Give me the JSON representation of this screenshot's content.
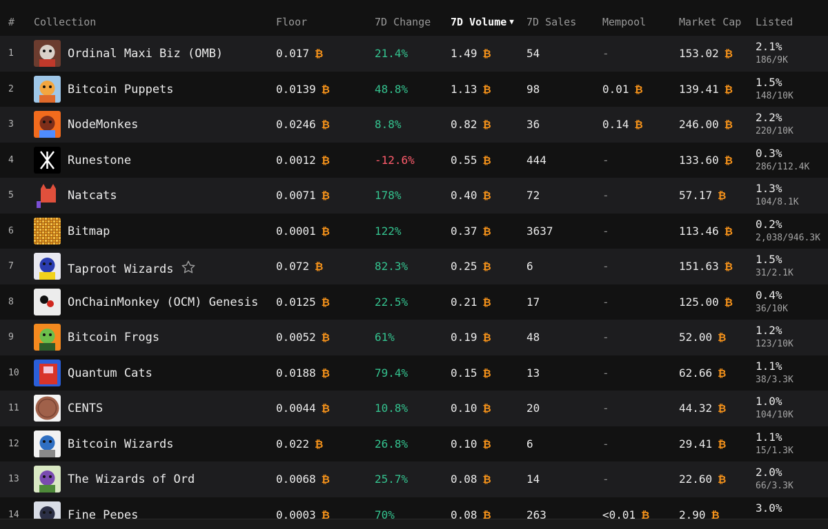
{
  "table": {
    "headers": {
      "rank": "#",
      "collection": "Collection",
      "floor": "Floor",
      "change": "7D Change",
      "volume": "7D Volume",
      "sales": "7D Sales",
      "mempool": "Mempool",
      "mcap": "Market Cap",
      "listed": "Listed"
    },
    "sort_indicator": "▼",
    "currency_symbol": "₿",
    "rows": [
      {
        "rank": "1",
        "name": "Ordinal Maxi Biz (OMB)",
        "floor": "0.017",
        "change": "21.4%",
        "dir": "pos",
        "volume": "1.49",
        "sales": "54",
        "mempool": "-",
        "mcap": "153.02",
        "listed_pct": "2.1%",
        "listed_cnt": "186/9K",
        "thumb": "omb-thumbnail",
        "colors": [
          "#6b3c2f",
          "#d9d1c9",
          "#c0392b"
        ]
      },
      {
        "rank": "2",
        "name": "Bitcoin Puppets",
        "floor": "0.0139",
        "change": "48.8%",
        "dir": "pos",
        "volume": "1.13",
        "sales": "98",
        "mempool": "0.01",
        "mcap": "139.41",
        "listed_pct": "1.5%",
        "listed_cnt": "148/10K",
        "thumb": "puppet-thumbnail",
        "colors": [
          "#9fc7e8",
          "#f3a640",
          "#e06a2b"
        ]
      },
      {
        "rank": "3",
        "name": "NodeMonkes",
        "floor": "0.0246",
        "change": "8.8%",
        "dir": "pos",
        "volume": "0.82",
        "sales": "36",
        "mempool": "0.14",
        "mcap": "246.00",
        "listed_pct": "2.2%",
        "listed_cnt": "220/10K",
        "thumb": "nodemonke-thumbnail",
        "colors": [
          "#f26b1d",
          "#7d2e1a",
          "#4f8cff"
        ]
      },
      {
        "rank": "4",
        "name": "Runestone",
        "floor": "0.0012",
        "change": "-12.6%",
        "dir": "neg",
        "volume": "0.55",
        "sales": "444",
        "mempool": "-",
        "mcap": "133.60",
        "listed_pct": "0.3%",
        "listed_cnt": "286/112.4K",
        "thumb": "runestone-thumbnail",
        "colors": [
          "#000000",
          "#ffffff",
          "#ffffff"
        ]
      },
      {
        "rank": "5",
        "name": "Natcats",
        "floor": "0.0071",
        "change": "178%",
        "dir": "pos",
        "volume": "0.40",
        "sales": "72",
        "mempool": "-",
        "mcap": "57.17",
        "listed_pct": "1.3%",
        "listed_cnt": "104/8.1K",
        "thumb": "natcat-thumbnail",
        "colors": [
          "#1d1d1f",
          "#e0503c",
          "#7b4fd4"
        ]
      },
      {
        "rank": "6",
        "name": "Bitmap",
        "floor": "0.0001",
        "change": "122%",
        "dir": "pos",
        "volume": "0.37",
        "sales": "3637",
        "mempool": "-",
        "mcap": "113.46",
        "listed_pct": "0.2%",
        "listed_cnt": "2,038/946.3K",
        "thumb": "bitmap-thumbnail",
        "colors": [
          "#e29a22",
          "#a35d0f",
          "#f2c14a"
        ]
      },
      {
        "rank": "7",
        "name": "Taproot Wizards",
        "floor": "0.072",
        "change": "82.3%",
        "dir": "pos",
        "volume": "0.25",
        "sales": "6",
        "mempool": "-",
        "mcap": "151.63",
        "listed_pct": "1.5%",
        "listed_cnt": "31/2.1K",
        "thumb": "taproot-wizard-thumbnail",
        "colors": [
          "#e8e8f0",
          "#2a3cb0",
          "#f2d21c"
        ],
        "starred": true
      },
      {
        "rank": "8",
        "name": "OnChainMonkey (OCM) Genesis",
        "floor": "0.0125",
        "change": "22.5%",
        "dir": "pos",
        "volume": "0.21",
        "sales": "17",
        "mempool": "-",
        "mcap": "125.00",
        "listed_pct": "0.4%",
        "listed_cnt": "36/10K",
        "thumb": "ocm-thumbnail",
        "colors": [
          "#ececec",
          "#d0271e",
          "#111111"
        ]
      },
      {
        "rank": "9",
        "name": "Bitcoin Frogs",
        "floor": "0.0052",
        "change": "61%",
        "dir": "pos",
        "volume": "0.19",
        "sales": "48",
        "mempool": "-",
        "mcap": "52.00",
        "listed_pct": "1.2%",
        "listed_cnt": "123/10K",
        "thumb": "frog-thumbnail",
        "colors": [
          "#f58a1f",
          "#6cbf4b",
          "#2d5d2a"
        ]
      },
      {
        "rank": "10",
        "name": "Quantum Cats",
        "floor": "0.0188",
        "change": "79.4%",
        "dir": "pos",
        "volume": "0.15",
        "sales": "13",
        "mempool": "-",
        "mcap": "62.66",
        "listed_pct": "1.1%",
        "listed_cnt": "38/3.3K",
        "thumb": "quantum-cat-thumbnail",
        "colors": [
          "#2b5fd9",
          "#d8342a",
          "#f5c7d6"
        ]
      },
      {
        "rank": "11",
        "name": "CENTS",
        "floor": "0.0044",
        "change": "10.8%",
        "dir": "pos",
        "volume": "0.10",
        "sales": "20",
        "mempool": "-",
        "mcap": "44.32",
        "listed_pct": "1.0%",
        "listed_cnt": "104/10K",
        "thumb": "cents-thumbnail",
        "colors": [
          "#f4f4f4",
          "#a0614a",
          "#7a4433"
        ]
      },
      {
        "rank": "12",
        "name": "Bitcoin Wizards",
        "floor": "0.022",
        "change": "26.8%",
        "dir": "pos",
        "volume": "0.10",
        "sales": "6",
        "mempool": "-",
        "mcap": "29.41",
        "listed_pct": "1.1%",
        "listed_cnt": "15/1.3K",
        "thumb": "bitcoin-wizard-thumbnail",
        "colors": [
          "#f2f2f2",
          "#2f6fc2",
          "#8a8a8a"
        ]
      },
      {
        "rank": "13",
        "name": "The Wizards of Ord",
        "floor": "0.0068",
        "change": "25.7%",
        "dir": "pos",
        "volume": "0.08",
        "sales": "14",
        "mempool": "-",
        "mcap": "22.60",
        "listed_pct": "2.0%",
        "listed_cnt": "66/3.3K",
        "thumb": "wizards-of-ord-thumbnail",
        "colors": [
          "#d9e8c4",
          "#7a4bb0",
          "#4e8a3a"
        ]
      },
      {
        "rank": "14",
        "name": "Fine Pepes",
        "floor": "0.0003",
        "change": "70%",
        "dir": "pos",
        "volume": "0.08",
        "sales": "263",
        "mempool": "<0.01",
        "mcap": "2.90",
        "listed_pct": "3.0%",
        "listed_cnt": "",
        "thumb": "fine-pepe-thumbnail",
        "colors": [
          "#d9dde6",
          "#2b2f45",
          "#c23b3b"
        ]
      }
    ]
  }
}
